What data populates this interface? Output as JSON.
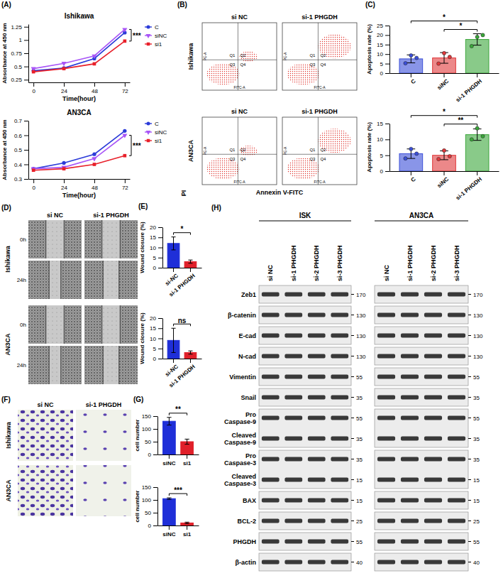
{
  "chart_data": [
    {
      "type": "line",
      "title": "Ishikawa",
      "x_label": "Time(hour)",
      "y_label": "Absorbance at 450 nm",
      "x": [
        0,
        24,
        48,
        72
      ],
      "xlim": [
        -4,
        76
      ],
      "xticks": [
        0,
        24,
        48,
        72
      ],
      "ylim": [
        0.2,
        1.3
      ],
      "yticks": [
        0.25,
        0.5,
        0.75,
        1,
        1.25
      ],
      "legend": "right",
      "series": [
        {
          "name": "C",
          "color": "#2b3bd9",
          "marker": "circle",
          "values": [
            0.42,
            0.47,
            0.65,
            1.14
          ]
        },
        {
          "name": "siNC",
          "color": "#a855f7",
          "marker": "triangle-down",
          "values": [
            0.46,
            0.56,
            0.7,
            1.2
          ]
        },
        {
          "name": "si1",
          "color": "#e8202a",
          "marker": "square",
          "values": [
            0.4,
            0.46,
            0.55,
            0.98
          ]
        }
      ],
      "annotations": [
        {
          "text": "***",
          "between": [
            "siNC",
            "si1"
          ]
        }
      ]
    },
    {
      "type": "line",
      "title": "AN3CA",
      "x_label": "Time(hour)",
      "y_label": "Absorbance at 450 nm",
      "x": [
        0,
        24,
        48,
        72
      ],
      "xlim": [
        -4,
        76
      ],
      "xticks": [
        0,
        24,
        48,
        72
      ],
      "ylim": [
        0.3,
        0.7
      ],
      "yticks": [
        0.3,
        0.4,
        0.5,
        0.6,
        0.7
      ],
      "legend": "right",
      "series": [
        {
          "name": "C",
          "color": "#2b3bd9",
          "marker": "circle",
          "values": [
            0.37,
            0.41,
            0.47,
            0.63
          ]
        },
        {
          "name": "siNC",
          "color": "#a855f7",
          "marker": "triangle-down",
          "values": [
            0.37,
            0.38,
            0.44,
            0.6
          ]
        },
        {
          "name": "si1",
          "color": "#e8202a",
          "marker": "square",
          "values": [
            0.36,
            0.37,
            0.4,
            0.46
          ]
        }
      ],
      "annotations": [
        {
          "text": "***",
          "between": [
            "siNC",
            "si1"
          ]
        }
      ]
    },
    {
      "type": "bar",
      "y_label": "Apoptosis rate (%)",
      "categories": [
        "C",
        "siNC",
        "si-1 PHGDH"
      ],
      "values": [
        7.5,
        8,
        17.7
      ],
      "errors": [
        2.1,
        2.8,
        3.0
      ],
      "points": [
        [
          5.2,
          9.3,
          8.0
        ],
        [
          5.0,
          10.5,
          8.5
        ],
        [
          14.2,
          19.0,
          20.0
        ]
      ],
      "colors": [
        "#3b4fd8",
        "#e0383b",
        "#3aa63a"
      ],
      "ylim": [
        0,
        25
      ],
      "yticks": [
        0,
        5,
        10,
        15,
        20,
        25
      ],
      "annotations": [
        {
          "text": "*",
          "between": [
            "siNC",
            "si-1 PHGDH"
          ]
        },
        {
          "text": "*",
          "between": [
            "C",
            "si-1 PHGDH"
          ]
        }
      ]
    },
    {
      "type": "bar",
      "y_label": "Apoptosis rate (%)",
      "categories": [
        "C",
        "siNC",
        "si-1 PHGDH"
      ],
      "values": [
        5.5,
        5.0,
        11.5
      ],
      "errors": [
        1.5,
        1.4,
        1.8
      ],
      "points": [
        [
          4.0,
          7.0,
          5.5
        ],
        [
          3.8,
          6.5,
          4.7
        ],
        [
          10.0,
          13.5,
          11.0
        ]
      ],
      "colors": [
        "#3b4fd8",
        "#e0383b",
        "#3aa63a"
      ],
      "ylim": [
        0,
        15
      ],
      "yticks": [
        0,
        5,
        10,
        15
      ],
      "annotations": [
        {
          "text": "**",
          "between": [
            "siNC",
            "si-1 PHGDH"
          ]
        },
        {
          "text": "*",
          "between": [
            "C",
            "si-1 PHGDH"
          ]
        }
      ]
    },
    {
      "type": "bar",
      "y_label": "Wound closure (%)",
      "categories": [
        "si-NC",
        "si-1 PHGDH"
      ],
      "values": [
        12,
        3
      ],
      "errors": [
        3.2,
        0.8
      ],
      "colors": [
        "#1f2fd8",
        "#e0202a"
      ],
      "ylim": [
        0,
        20
      ],
      "yticks": [
        0,
        5,
        10,
        15,
        20
      ],
      "annotations": [
        {
          "text": "*",
          "between": [
            "si-NC",
            "si-1 PHGDH"
          ]
        }
      ]
    },
    {
      "type": "bar",
      "y_label": "Wound closure (%)",
      "categories": [
        "si-NC",
        "si-1 PHGDH"
      ],
      "values": [
        9,
        3
      ],
      "errors": [
        6,
        0.8
      ],
      "colors": [
        "#1f2fd8",
        "#e0202a"
      ],
      "ylim": [
        0,
        20
      ],
      "yticks": [
        0,
        5,
        10,
        15,
        20
      ],
      "annotations": [
        {
          "text": "ns",
          "between": [
            "si-NC",
            "si-1 PHGDH"
          ]
        }
      ]
    },
    {
      "type": "bar",
      "y_label": "cell number",
      "categories": [
        "siNC",
        "si1"
      ],
      "values": [
        130,
        50
      ],
      "errors": [
        15,
        10
      ],
      "colors": [
        "#1f2fd8",
        "#e0202a"
      ],
      "ylim": [
        0,
        150
      ],
      "yticks": [
        0,
        50,
        100,
        150
      ],
      "annotations": [
        {
          "text": "**",
          "between": [
            "siNC",
            "si1"
          ]
        }
      ]
    },
    {
      "type": "bar",
      "y_label": "cell number",
      "categories": [
        "siNC",
        "si1"
      ],
      "values": [
        105,
        10
      ],
      "errors": [
        3,
        3
      ],
      "colors": [
        "#1f2fd8",
        "#e0202a"
      ],
      "ylim": [
        0,
        150
      ],
      "yticks": [
        0,
        50,
        100,
        150
      ],
      "annotations": [
        {
          "text": "***",
          "between": [
            "siNC",
            "si1"
          ]
        }
      ]
    }
  ],
  "panels": [
    "(A)",
    "(B)",
    "(C)",
    "(D)",
    "(E)",
    "(F)",
    "(G)",
    "(H)"
  ],
  "flow": {
    "columns": [
      "si NC",
      "si-1 PHGDH"
    ],
    "rows": [
      "Ishikawa",
      "AN3CA"
    ],
    "x_label": "Annexin V-FITC",
    "y_label": "PI",
    "plot_x_label": "FITC-A",
    "plot_y_label": "PE-A",
    "quadrants": [
      "Q1",
      "Q2",
      "Q3",
      "Q4"
    ]
  },
  "wound": {
    "columns": [
      "si NC",
      "si-1 PHGDH"
    ],
    "rows": [
      "Ishikawa",
      "AN3CA"
    ],
    "times": [
      "0h",
      "24h"
    ]
  },
  "transwell": {
    "columns": [
      "si NC",
      "si-1 PHGDH"
    ],
    "rows": [
      "Ishikawa",
      "AN3CA"
    ]
  },
  "western": {
    "groups": [
      {
        "name": "ISK",
        "lanes": [
          "si NC",
          "si-1 PHGDH",
          "si-2 PHGDH",
          "si-3 PHGDH"
        ]
      },
      {
        "name": "AN3CA",
        "lanes": [
          "si NC",
          "si-1 PHGDH",
          "si-2 PHGDH",
          "si-3 PHGDH"
        ]
      }
    ],
    "rows": [
      {
        "labels": [
          "Zeb1"
        ],
        "mw": [
          170
        ]
      },
      {
        "labels": [
          "β-catenin"
        ],
        "mw": [
          130
        ]
      },
      {
        "labels": [
          "E-cad"
        ],
        "mw": [
          130
        ]
      },
      {
        "labels": [
          "N-cad"
        ],
        "mw": [
          130
        ]
      },
      {
        "labels": [
          "Vimentin"
        ],
        "mw": [
          55
        ]
      },
      {
        "labels": [
          "Snail"
        ],
        "mw": [
          35
        ]
      },
      {
        "labels": [
          "Pro Caspase-9",
          "Cleaved Caspase-9"
        ],
        "mw": [
          55,
          35
        ]
      },
      {
        "labels": [
          "Pro Caspase-3",
          "Cleaved Caspase-3"
        ],
        "mw": [
          35,
          15
        ]
      },
      {
        "labels": [
          "BAX"
        ],
        "mw": [
          15
        ]
      },
      {
        "labels": [
          "BCL-2"
        ],
        "mw": [
          25
        ]
      },
      {
        "labels": [
          "PHGDH"
        ],
        "mw": [
          55
        ]
      },
      {
        "labels": [
          "β-actin"
        ],
        "mw": [
          40
        ]
      }
    ]
  }
}
